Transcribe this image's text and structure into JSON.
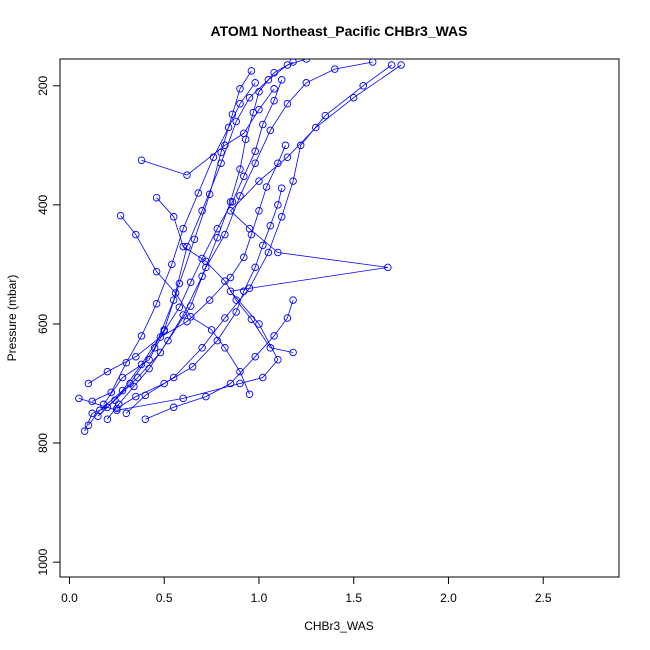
{
  "chart_data": {
    "type": "line",
    "title": "ATOM1 Northeast_Pacific CHBr3_WAS",
    "xlabel": "CHBr3_WAS",
    "ylabel": "Pressure (mbar)",
    "xlim": [
      -0.05,
      2.9
    ],
    "ylim": [
      1025,
      155
    ],
    "y_reversed": true,
    "grid": false,
    "x_ticks": [
      0.0,
      0.5,
      1.0,
      1.5,
      2.0,
      2.5
    ],
    "x_tick_labels": [
      "0.0",
      "0.5",
      "1.0",
      "1.5",
      "2.0",
      "2.5"
    ],
    "y_ticks": [
      200,
      400,
      600,
      800,
      1000
    ],
    "y_tick_labels": [
      "200",
      "400",
      "600",
      "800",
      "1000"
    ],
    "colors": {
      "series": "#0000ff",
      "axes": "#000000"
    },
    "series": [
      {
        "marker": "open-circle",
        "points": [
          [
            0.08,
            780
          ],
          [
            0.12,
            750
          ],
          [
            0.2,
            740
          ],
          [
            0.32,
            700
          ],
          [
            0.45,
            640
          ],
          [
            0.55,
            560
          ],
          [
            0.62,
            470
          ],
          [
            0.7,
            410
          ],
          [
            0.8,
            330
          ],
          [
            0.88,
            260
          ],
          [
            0.95,
            220
          ],
          [
            1.05,
            190
          ],
          [
            1.15,
            165
          ],
          [
            1.25,
            155
          ]
        ]
      },
      {
        "marker": "open-circle",
        "points": [
          [
            0.1,
            770
          ],
          [
            0.16,
            745
          ],
          [
            0.28,
            712
          ],
          [
            0.38,
            668
          ],
          [
            0.5,
            610
          ],
          [
            0.58,
            532
          ],
          [
            0.66,
            458
          ],
          [
            0.74,
            382
          ],
          [
            0.8,
            312
          ],
          [
            0.86,
            248
          ],
          [
            0.9,
            205
          ],
          [
            0.96,
            175
          ]
        ]
      },
      {
        "marker": "open-circle",
        "points": [
          [
            0.15,
            755
          ],
          [
            0.24,
            728
          ],
          [
            0.36,
            690
          ],
          [
            0.48,
            648
          ],
          [
            0.6,
            585
          ],
          [
            0.7,
            520
          ],
          [
            0.78,
            455
          ],
          [
            0.85,
            395
          ],
          [
            0.9,
            340
          ],
          [
            0.93,
            290
          ],
          [
            0.97,
            245
          ],
          [
            1.0,
            210
          ],
          [
            1.08,
            178
          ],
          [
            1.18,
            160
          ]
        ]
      },
      {
        "marker": "open-circle",
        "points": [
          [
            0.2,
            760
          ],
          [
            0.26,
            735
          ],
          [
            0.34,
            705
          ],
          [
            0.42,
            675
          ],
          [
            0.52,
            628
          ],
          [
            0.64,
            570
          ],
          [
            0.72,
            505
          ],
          [
            0.82,
            450
          ],
          [
            0.9,
            385
          ],
          [
            0.98,
            330
          ],
          [
            1.06,
            275
          ],
          [
            1.15,
            230
          ],
          [
            1.25,
            195
          ],
          [
            1.4,
            172
          ],
          [
            1.6,
            160
          ]
        ]
      },
      {
        "marker": "open-circle",
        "points": [
          [
            0.3,
            750
          ],
          [
            0.4,
            720
          ],
          [
            0.55,
            690
          ],
          [
            0.7,
            640
          ],
          [
            0.82,
            590
          ],
          [
            0.95,
            540
          ],
          [
            1.05,
            480
          ],
          [
            1.12,
            420
          ],
          [
            1.18,
            360
          ],
          [
            1.22,
            300
          ],
          [
            1.35,
            250
          ],
          [
            1.55,
            200
          ],
          [
            1.7,
            165
          ]
        ]
      },
      {
        "marker": "open-circle",
        "points": [
          [
            0.12,
            730
          ],
          [
            0.22,
            715
          ],
          [
            0.3,
            665
          ],
          [
            0.38,
            620
          ],
          [
            0.46,
            566
          ],
          [
            0.54,
            500
          ],
          [
            0.6,
            440
          ],
          [
            0.68,
            380
          ],
          [
            0.76,
            320
          ],
          [
            0.84,
            270
          ],
          [
            0.9,
            230
          ],
          [
            0.98,
            195
          ]
        ]
      },
      {
        "marker": "open-circle",
        "points": [
          [
            0.05,
            725
          ],
          [
            0.25,
            745
          ],
          [
            0.6,
            725
          ],
          [
            0.9,
            700
          ],
          [
            1.02,
            690
          ],
          [
            1.1,
            660
          ],
          [
            1.0,
            600
          ],
          [
            0.85,
            545
          ],
          [
            1.68,
            505
          ],
          [
            1.1,
            480
          ],
          [
            0.95,
            440
          ],
          [
            0.85,
            410
          ],
          [
            1.0,
            360
          ],
          [
            1.15,
            320
          ],
          [
            1.3,
            270
          ],
          [
            1.5,
            220
          ],
          [
            1.75,
            165
          ]
        ]
      },
      {
        "marker": "open-circle",
        "points": [
          [
            0.18,
            735
          ],
          [
            0.28,
            690
          ],
          [
            0.42,
            660
          ],
          [
            0.5,
            612
          ],
          [
            0.58,
            572
          ],
          [
            0.64,
            530
          ],
          [
            0.7,
            490
          ],
          [
            0.78,
            440
          ],
          [
            0.86,
            395
          ],
          [
            0.92,
            352
          ],
          [
            0.98,
            310
          ],
          [
            1.02,
            265
          ],
          [
            1.08,
            225
          ],
          [
            1.12,
            190
          ]
        ]
      },
      {
        "marker": "open-circle",
        "points": [
          [
            0.1,
            700
          ],
          [
            0.2,
            680
          ],
          [
            0.35,
            655
          ],
          [
            0.48,
            622
          ],
          [
            0.62,
            596
          ],
          [
            0.74,
            560
          ],
          [
            0.85,
            522
          ],
          [
            0.92,
            488
          ],
          [
            0.96,
            450
          ],
          [
            1.0,
            410
          ],
          [
            1.04,
            370
          ],
          [
            1.1,
            330
          ],
          [
            1.14,
            300
          ]
        ]
      },
      {
        "marker": "open-circle",
        "points": [
          [
            0.25,
            742
          ],
          [
            0.35,
            722
          ],
          [
            0.5,
            700
          ],
          [
            0.65,
            672
          ],
          [
            0.78,
            628
          ],
          [
            0.88,
            580
          ],
          [
            0.92,
            545
          ],
          [
            0.98,
            505
          ],
          [
            1.02,
            468
          ],
          [
            1.06,
            435
          ],
          [
            1.1,
            400
          ],
          [
            1.12,
            372
          ]
        ]
      },
      {
        "marker": "open-circle",
        "points": [
          [
            0.4,
            760
          ],
          [
            0.55,
            740
          ],
          [
            0.72,
            722
          ],
          [
            0.85,
            700
          ],
          [
            0.98,
            655
          ],
          [
            1.08,
            620
          ],
          [
            1.15,
            590
          ],
          [
            1.18,
            560
          ]
        ]
      },
      {
        "marker": "open-circle",
        "points": [
          [
            0.38,
            325
          ],
          [
            0.62,
            350
          ],
          [
            0.82,
            300
          ],
          [
            0.92,
            280
          ],
          [
            1.0,
            240
          ],
          [
            1.08,
            205
          ]
        ]
      },
      {
        "marker": "open-circle",
        "points": [
          [
            0.27,
            418
          ],
          [
            0.35,
            450
          ],
          [
            0.46,
            512
          ],
          [
            0.56,
            548
          ],
          [
            0.64,
            588
          ],
          [
            0.75,
            610
          ],
          [
            0.82,
            640
          ],
          [
            0.9,
            680
          ],
          [
            0.95,
            718
          ]
        ]
      },
      {
        "marker": "open-circle",
        "points": [
          [
            0.46,
            388
          ],
          [
            0.55,
            420
          ],
          [
            0.6,
            470
          ],
          [
            0.72,
            495
          ],
          [
            0.82,
            528
          ],
          [
            0.88,
            560
          ],
          [
            0.96,
            592
          ],
          [
            1.06,
            640
          ],
          [
            1.18,
            648
          ]
        ]
      }
    ]
  }
}
